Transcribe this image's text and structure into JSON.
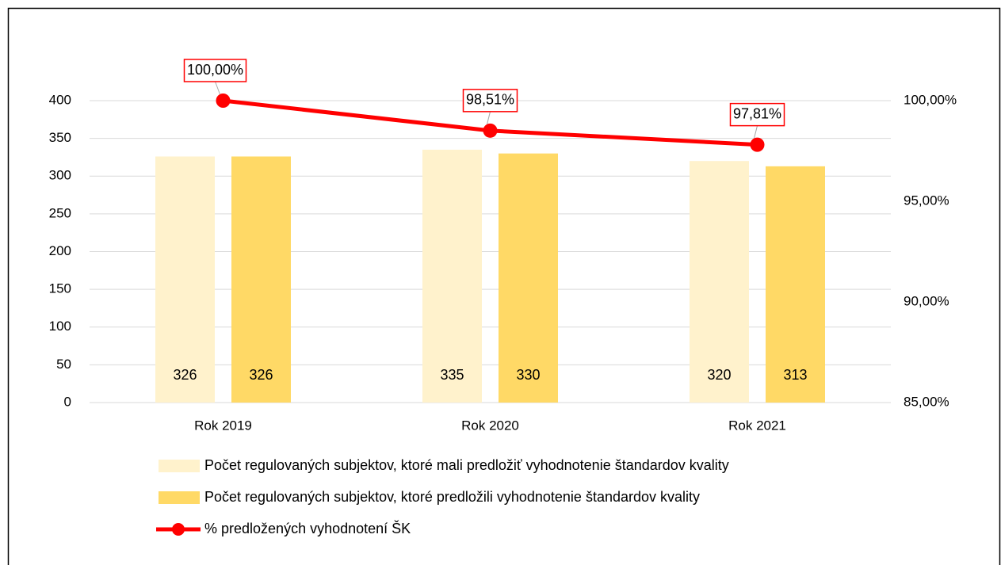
{
  "chart_data": {
    "type": "bar",
    "categories": [
      "Rok 2019",
      "Rok 2020",
      "Rok 2021"
    ],
    "series": [
      {
        "name": "Počet regulovaných subjektov, ktoré mali predložiť vyhodnotenie štandardov kvality",
        "color": "#fff2cc",
        "type": "bar",
        "values": [
          326,
          335,
          320
        ]
      },
      {
        "name": "Počet regulovaných subjektov, ktoré predložili vyhodnotenie štandardov kvality",
        "color": "#ffd966",
        "type": "bar",
        "values": [
          326,
          330,
          313
        ]
      },
      {
        "name": "% predložených vyhodnotení ŠK",
        "color": "#ff0000",
        "type": "line",
        "axis": "y2",
        "values": [
          100,
          98.51,
          97.81
        ],
        "value_labels": [
          "100,00%",
          "98,51%",
          "97,81%"
        ]
      }
    ],
    "ylim": [
      0,
      400
    ],
    "yticks": [
      0,
      50,
      100,
      150,
      200,
      250,
      300,
      350,
      400
    ],
    "y2lim": [
      85,
      100
    ],
    "y2ticks": [
      {
        "value": 85,
        "label": "85,00%"
      },
      {
        "value": 90,
        "label": "90,00%"
      },
      {
        "value": 95,
        "label": "95,00%"
      },
      {
        "value": 100,
        "label": "100,00%"
      }
    ],
    "grid": true,
    "legend": "bottom"
  }
}
